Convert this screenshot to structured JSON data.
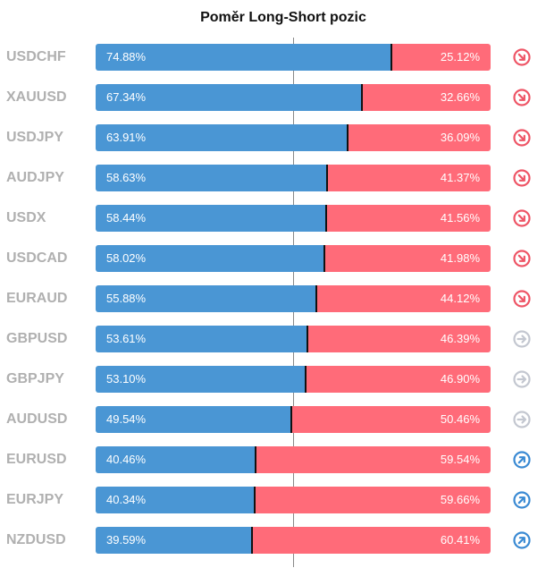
{
  "chart_data": {
    "type": "bar",
    "title": "Poměr Long-Short pozic",
    "categories": [
      "USDCHF",
      "XAUUSD",
      "USDJPY",
      "AUDJPY",
      "USDX",
      "USDCAD",
      "EURAUD",
      "GBPUSD",
      "GBPJPY",
      "AUDUSD",
      "EURUSD",
      "EURJPY",
      "NZDUSD"
    ],
    "series": [
      {
        "values": [
          74.88,
          67.34,
          63.91,
          58.63,
          58.44,
          58.02,
          55.88,
          53.61,
          53.1,
          49.54,
          40.46,
          40.34,
          39.59
        ]
      },
      {
        "values": [
          25.12,
          32.66,
          36.09,
          41.37,
          41.56,
          41.98,
          44.12,
          46.39,
          46.9,
          50.46,
          59.54,
          59.66,
          60.41
        ]
      }
    ],
    "long_labels": [
      "74.88%",
      "67.34%",
      "63.91%",
      "58.63%",
      "58.44%",
      "58.02%",
      "55.88%",
      "53.61%",
      "53.10%",
      "49.54%",
      "40.46%",
      "40.34%",
      "39.59%"
    ],
    "short_labels": [
      "25.12%",
      "32.66%",
      "36.09%",
      "41.37%",
      "41.56%",
      "41.98%",
      "44.12%",
      "46.39%",
      "46.90%",
      "50.46%",
      "59.54%",
      "59.66%",
      "60.41%"
    ],
    "signals": [
      "down",
      "down",
      "down",
      "down",
      "down",
      "down",
      "down",
      "neutral",
      "neutral",
      "neutral",
      "up",
      "up",
      "up"
    ],
    "stacked": true,
    "xlim": [
      0,
      100
    ]
  },
  "colors": {
    "long": "#4a96d4",
    "short": "#ff6b79",
    "signal_down": "#ee5566",
    "signal_neutral": "#c3c7d0",
    "signal_up": "#3a8ad3"
  },
  "icons": {
    "down": "arrow-down-right-icon",
    "neutral": "arrow-right-icon",
    "up": "arrow-up-right-icon"
  }
}
